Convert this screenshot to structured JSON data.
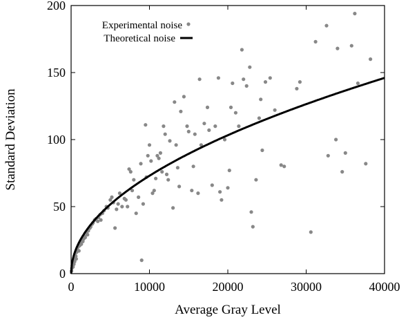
{
  "chart_data": {
    "type": "scatter",
    "xlabel": "Average Gray Level",
    "ylabel": "Standard Deviation",
    "xlim": [
      0,
      40000
    ],
    "ylim": [
      0,
      200
    ],
    "xticks": [
      "0",
      "10000",
      "20000",
      "30000",
      "40000"
    ],
    "yticks": [
      "0",
      "50",
      "100",
      "150",
      "200"
    ],
    "legend_position": "top-left",
    "grid": false,
    "colors": {
      "points": "#888888",
      "line": "#000000"
    },
    "legend": [
      {
        "label": "Experimental noise",
        "marker": "dot"
      },
      {
        "label": "Theoretical noise",
        "marker": "line"
      }
    ],
    "series": [
      {
        "name": "Experimental noise",
        "kind": "scatter",
        "points": [
          [
            50,
            2
          ],
          [
            100,
            4
          ],
          [
            150,
            6
          ],
          [
            200,
            8
          ],
          [
            250,
            5
          ],
          [
            300,
            10
          ],
          [
            350,
            7
          ],
          [
            400,
            12
          ],
          [
            450,
            9
          ],
          [
            500,
            14
          ],
          [
            600,
            13
          ],
          [
            650,
            11
          ],
          [
            700,
            16
          ],
          [
            800,
            18
          ],
          [
            900,
            20
          ],
          [
            1000,
            17
          ],
          [
            1100,
            21
          ],
          [
            1200,
            23
          ],
          [
            1300,
            22
          ],
          [
            1400,
            25
          ],
          [
            1500,
            24
          ],
          [
            1600,
            26
          ],
          [
            1700,
            28
          ],
          [
            1800,
            27
          ],
          [
            2000,
            30
          ],
          [
            2100,
            29
          ],
          [
            2200,
            32
          ],
          [
            2400,
            34
          ],
          [
            2500,
            35
          ],
          [
            2700,
            37
          ],
          [
            2800,
            38
          ],
          [
            3000,
            40
          ],
          [
            3200,
            41
          ],
          [
            3400,
            39
          ],
          [
            3500,
            42
          ],
          [
            3700,
            44
          ],
          [
            3800,
            40
          ],
          [
            4000,
            45
          ],
          [
            4200,
            47
          ],
          [
            4500,
            50
          ],
          [
            4700,
            49
          ],
          [
            5000,
            55
          ],
          [
            5200,
            57
          ],
          [
            5400,
            53
          ],
          [
            5600,
            34
          ],
          [
            5800,
            48
          ],
          [
            6000,
            52
          ],
          [
            6200,
            60
          ],
          [
            6500,
            50
          ],
          [
            6800,
            56
          ],
          [
            7000,
            55
          ],
          [
            7200,
            50
          ],
          [
            7400,
            78
          ],
          [
            7600,
            76
          ],
          [
            7800,
            62
          ],
          [
            8000,
            70
          ],
          [
            8300,
            45
          ],
          [
            8600,
            57
          ],
          [
            8900,
            82
          ],
          [
            9000,
            10
          ],
          [
            9200,
            52
          ],
          [
            9500,
            111
          ],
          [
            9600,
            72
          ],
          [
            9800,
            88
          ],
          [
            10000,
            96
          ],
          [
            10200,
            84
          ],
          [
            10400,
            60
          ],
          [
            10600,
            62
          ],
          [
            10800,
            71
          ],
          [
            11000,
            88
          ],
          [
            11200,
            86
          ],
          [
            11400,
            90
          ],
          [
            11600,
            76
          ],
          [
            11800,
            110
          ],
          [
            12000,
            104
          ],
          [
            12200,
            74
          ],
          [
            12400,
            70
          ],
          [
            12600,
            99
          ],
          [
            13000,
            49
          ],
          [
            13200,
            128
          ],
          [
            13400,
            96
          ],
          [
            13600,
            79
          ],
          [
            13800,
            65
          ],
          [
            14000,
            121
          ],
          [
            14400,
            132
          ],
          [
            14800,
            110
          ],
          [
            15000,
            106
          ],
          [
            15400,
            62
          ],
          [
            15600,
            80
          ],
          [
            15800,
            104
          ],
          [
            16200,
            60
          ],
          [
            16400,
            145
          ],
          [
            16600,
            96
          ],
          [
            17000,
            112
          ],
          [
            17400,
            124
          ],
          [
            17600,
            107
          ],
          [
            18000,
            66
          ],
          [
            18400,
            110
          ],
          [
            18800,
            146
          ],
          [
            19000,
            61
          ],
          [
            19200,
            55
          ],
          [
            19600,
            100
          ],
          [
            20000,
            64
          ],
          [
            20200,
            77
          ],
          [
            20400,
            124
          ],
          [
            20600,
            142
          ],
          [
            21000,
            120
          ],
          [
            21400,
            110
          ],
          [
            21800,
            167
          ],
          [
            22000,
            145
          ],
          [
            22400,
            140
          ],
          [
            22800,
            154
          ],
          [
            23000,
            46
          ],
          [
            23200,
            35
          ],
          [
            23600,
            70
          ],
          [
            24000,
            116
          ],
          [
            24200,
            130
          ],
          [
            24400,
            92
          ],
          [
            24800,
            143
          ],
          [
            25400,
            146
          ],
          [
            26000,
            122
          ],
          [
            26800,
            81
          ],
          [
            27200,
            80
          ],
          [
            28800,
            138
          ],
          [
            29200,
            143
          ],
          [
            30600,
            31
          ],
          [
            31200,
            173
          ],
          [
            32600,
            185
          ],
          [
            32800,
            88
          ],
          [
            33800,
            100
          ],
          [
            34000,
            168
          ],
          [
            34600,
            76
          ],
          [
            35000,
            90
          ],
          [
            35800,
            170
          ],
          [
            36200,
            194
          ],
          [
            36600,
            142
          ],
          [
            37600,
            82
          ],
          [
            38200,
            160
          ]
        ]
      },
      {
        "name": "Theoretical noise",
        "kind": "line",
        "function": "0.73*sqrt(x)"
      }
    ]
  }
}
